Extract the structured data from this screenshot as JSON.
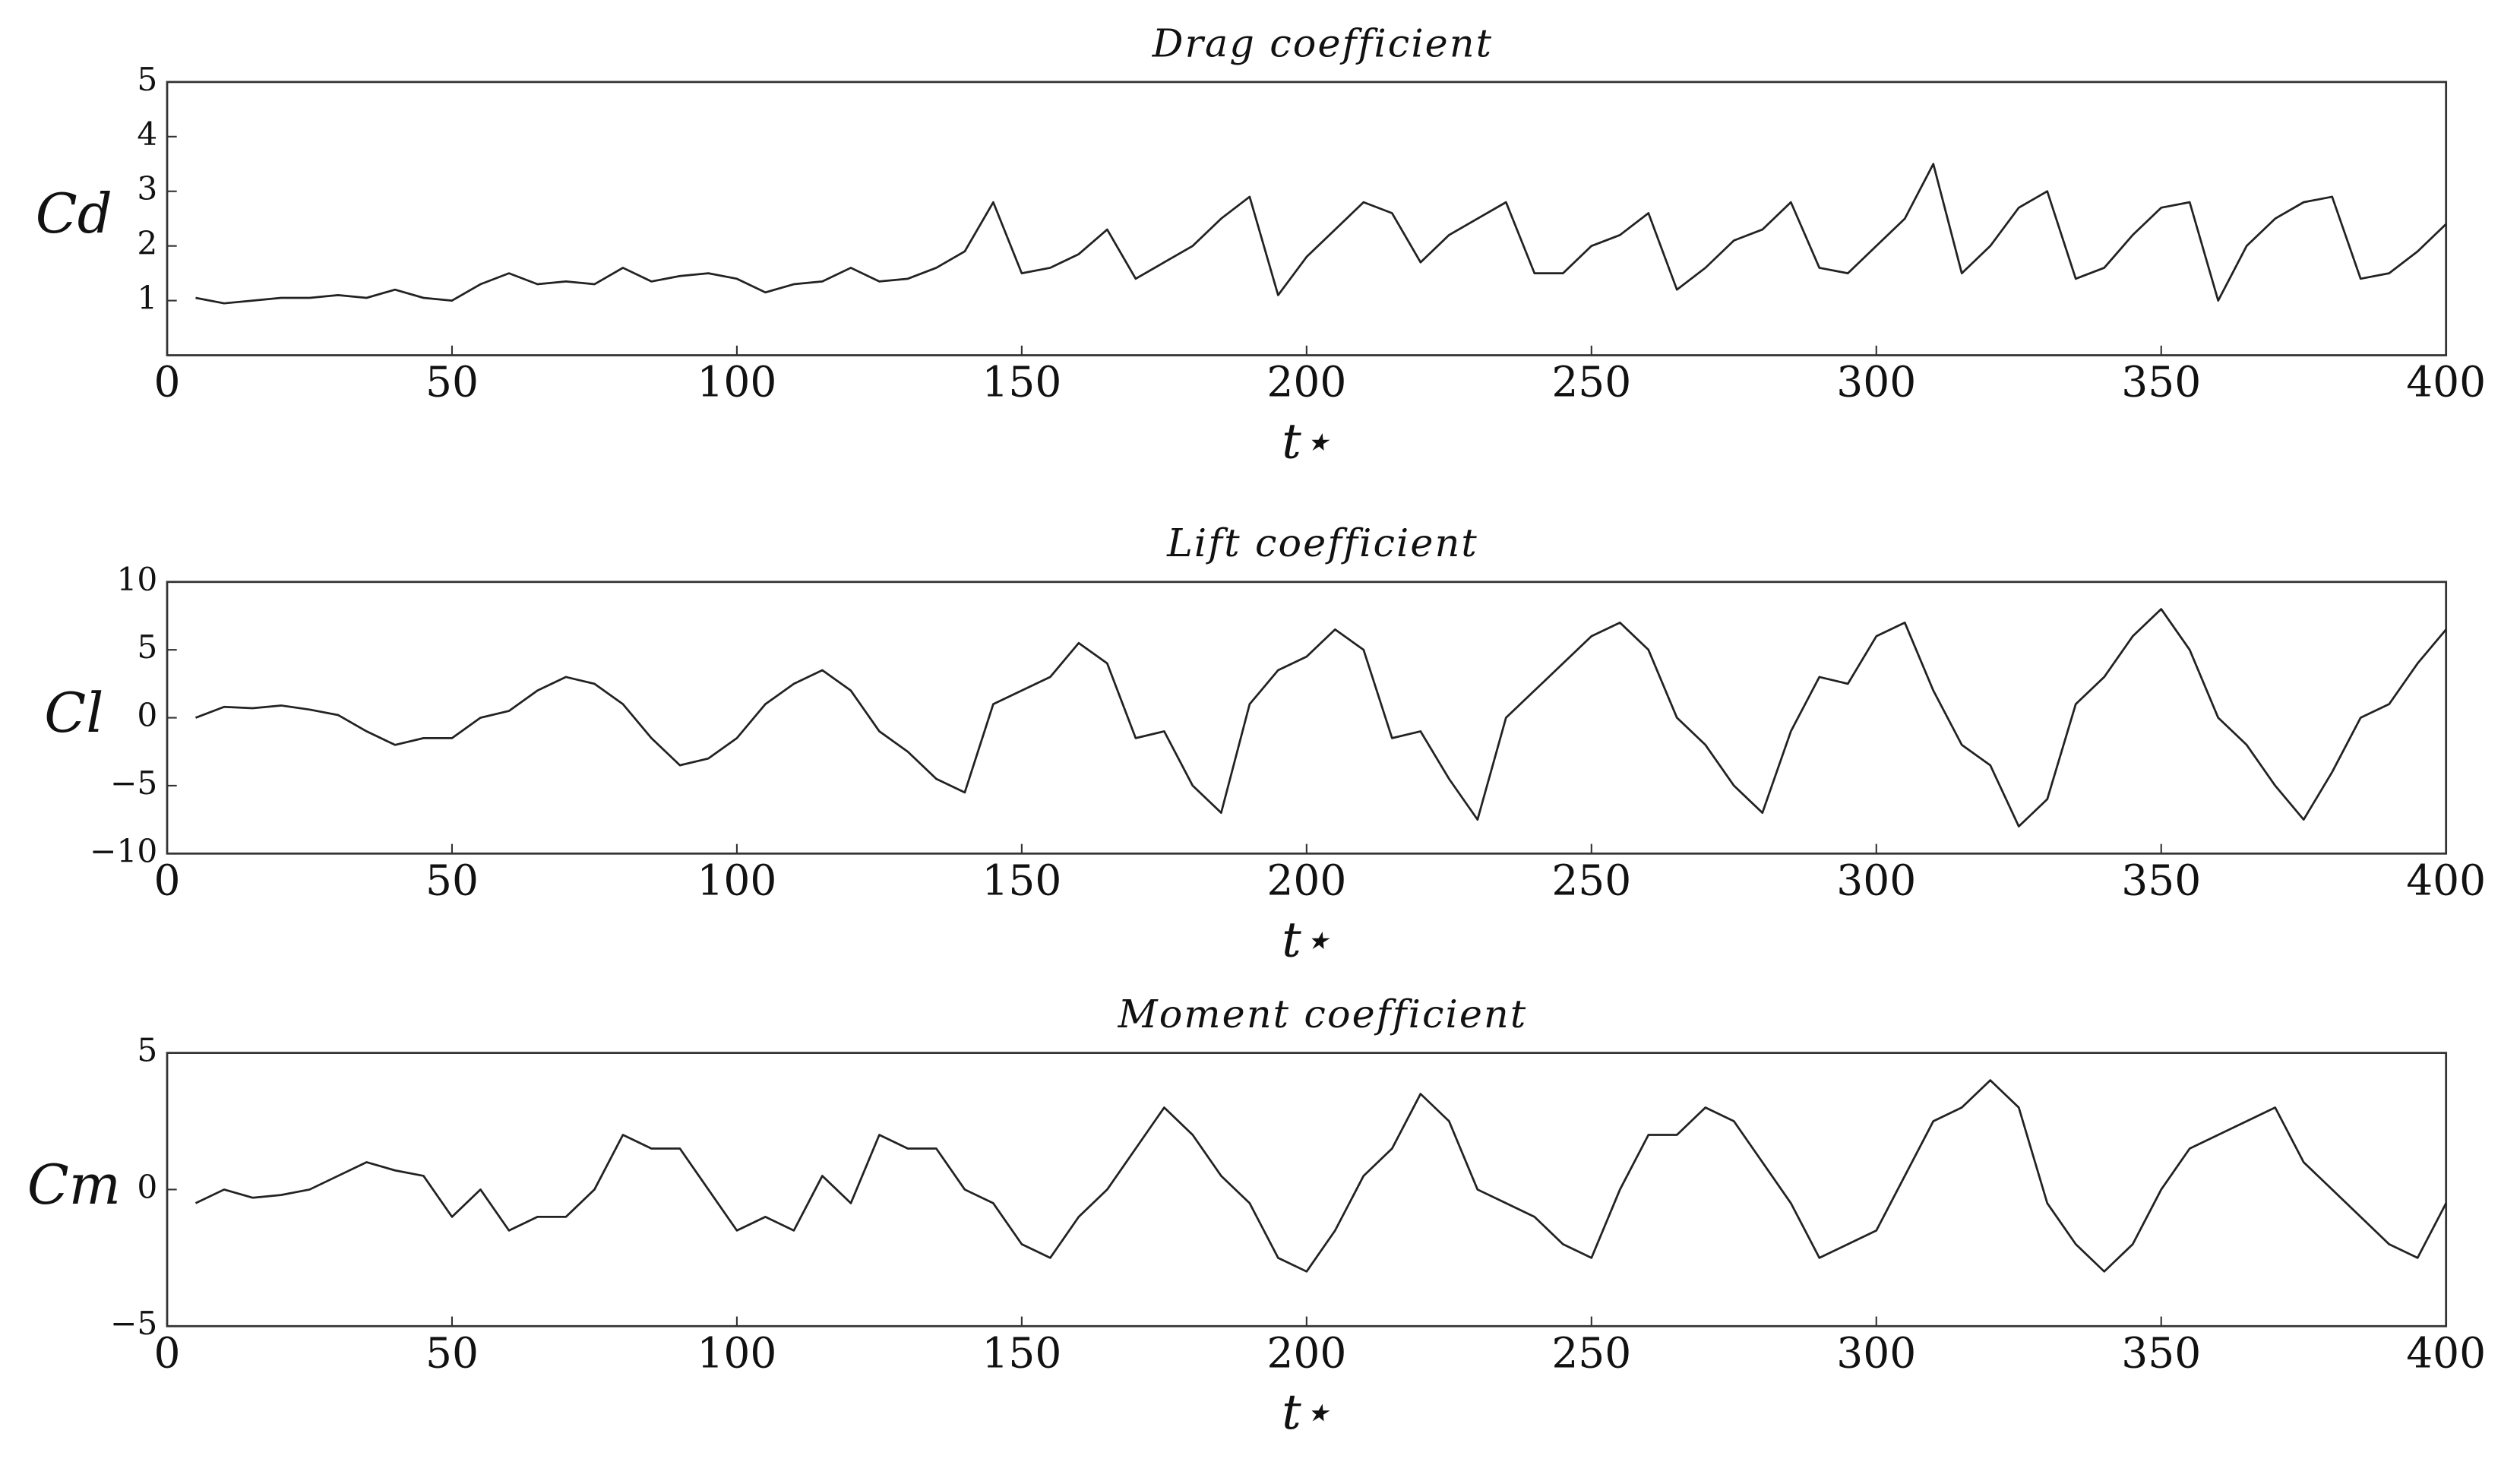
{
  "chart_data": [
    {
      "type": "line",
      "title": "Drag coefficient",
      "ylabel": "Cd",
      "xlabel": "t⋆",
      "color": "#222222",
      "xlim": [
        0,
        400
      ],
      "xticks": [
        0,
        50,
        100,
        150,
        200,
        250,
        300,
        350,
        400
      ],
      "ylim": [
        0,
        5
      ],
      "yticks": [
        1,
        2,
        3,
        4,
        5
      ],
      "x": [
        5,
        10,
        15,
        20,
        25,
        30,
        35,
        40,
        45,
        50,
        55,
        60,
        65,
        70,
        75,
        80,
        85,
        90,
        95,
        100,
        105,
        110,
        115,
        120,
        125,
        130,
        135,
        140,
        145,
        150,
        155,
        160,
        165,
        170,
        175,
        180,
        185,
        190,
        195,
        200,
        205,
        210,
        215,
        220,
        225,
        230,
        235,
        240,
        245,
        250,
        255,
        260,
        265,
        270,
        275,
        280,
        285,
        290,
        295,
        300,
        305,
        310,
        315,
        320,
        325,
        330,
        335,
        340,
        345,
        350,
        355,
        360,
        365,
        370,
        375,
        380,
        385,
        390,
        395,
        400
      ],
      "values": [
        1.05,
        0.95,
        1.0,
        1.05,
        1.05,
        1.1,
        1.05,
        1.2,
        1.05,
        1.0,
        1.3,
        1.5,
        1.3,
        1.35,
        1.3,
        1.6,
        1.35,
        1.45,
        1.5,
        1.4,
        1.15,
        1.3,
        1.35,
        1.6,
        1.35,
        1.4,
        1.6,
        1.9,
        2.8,
        1.5,
        1.6,
        1.85,
        2.3,
        1.4,
        1.7,
        2.0,
        2.5,
        2.9,
        1.1,
        1.8,
        2.3,
        2.8,
        2.6,
        1.7,
        2.2,
        2.5,
        2.8,
        1.5,
        1.5,
        2.0,
        2.2,
        2.6,
        1.2,
        1.6,
        2.1,
        2.3,
        2.8,
        1.6,
        1.5,
        2.0,
        2.5,
        3.5,
        1.5,
        2.0,
        2.7,
        3.0,
        1.4,
        1.6,
        2.2,
        2.7,
        2.8,
        1.0,
        2.0,
        2.5,
        2.8,
        2.9,
        1.4,
        1.5,
        1.9,
        2.4
      ]
    },
    {
      "type": "line",
      "title": "Lift coefficient",
      "ylabel": "Cl",
      "xlabel": "t⋆",
      "color": "#222222",
      "xlim": [
        0,
        400
      ],
      "xticks": [
        0,
        50,
        100,
        150,
        200,
        250,
        300,
        350,
        400
      ],
      "ylim": [
        -10,
        10
      ],
      "yticks": [
        {
          "value": -10,
          "label": "−10"
        },
        {
          "value": -5,
          "label": "−5"
        },
        0,
        5,
        10
      ],
      "x": [
        5,
        10,
        15,
        20,
        25,
        30,
        35,
        40,
        45,
        50,
        55,
        60,
        65,
        70,
        75,
        80,
        85,
        90,
        95,
        100,
        105,
        110,
        115,
        120,
        125,
        130,
        135,
        140,
        145,
        150,
        155,
        160,
        165,
        170,
        175,
        180,
        185,
        190,
        195,
        200,
        205,
        210,
        215,
        220,
        225,
        230,
        235,
        240,
        245,
        250,
        255,
        260,
        265,
        270,
        275,
        280,
        285,
        290,
        295,
        300,
        305,
        310,
        315,
        320,
        325,
        330,
        335,
        340,
        345,
        350,
        355,
        360,
        365,
        370,
        375,
        380,
        385,
        390,
        395,
        400
      ],
      "values": [
        0,
        0.8,
        0.7,
        0.9,
        0.6,
        0.2,
        -1,
        -2,
        -1.5,
        -1.5,
        0,
        0.5,
        2,
        3,
        2.5,
        1,
        -1.5,
        -3.5,
        -3,
        -1.5,
        1,
        2.5,
        3.5,
        2,
        -1,
        -2.5,
        -4.5,
        -5.5,
        1,
        2,
        3,
        5.5,
        4,
        -1.5,
        -1,
        -5,
        -7,
        1,
        3.5,
        4.5,
        6.5,
        5,
        -1.5,
        -1,
        -4.5,
        -7.5,
        0,
        2,
        4,
        6,
        7,
        5,
        0,
        -2,
        -5,
        -7,
        -1,
        3,
        2.5,
        6,
        7,
        2,
        -2,
        -3.5,
        -8,
        -6,
        1,
        3,
        6,
        8,
        5,
        0,
        -2,
        -5,
        -7.5,
        -4,
        0,
        1,
        4,
        6.5
      ]
    },
    {
      "type": "line",
      "title": "Moment coefficient",
      "ylabel": "Cm",
      "xlabel": "t⋆",
      "color": "#222222",
      "xlim": [
        0,
        400
      ],
      "xticks": [
        0,
        50,
        100,
        150,
        200,
        250,
        300,
        350,
        400
      ],
      "ylim": [
        -5,
        5
      ],
      "yticks": [
        {
          "value": -5,
          "label": "−5"
        },
        0,
        5
      ],
      "x": [
        5,
        10,
        15,
        20,
        25,
        30,
        35,
        40,
        45,
        50,
        55,
        60,
        65,
        70,
        75,
        80,
        85,
        90,
        95,
        100,
        105,
        110,
        115,
        120,
        125,
        130,
        135,
        140,
        145,
        150,
        155,
        160,
        165,
        170,
        175,
        180,
        185,
        190,
        195,
        200,
        205,
        210,
        215,
        220,
        225,
        230,
        235,
        240,
        245,
        250,
        255,
        260,
        265,
        270,
        275,
        280,
        285,
        290,
        295,
        300,
        305,
        310,
        315,
        320,
        325,
        330,
        335,
        340,
        345,
        350,
        355,
        360,
        365,
        370,
        375,
        380,
        385,
        390,
        395,
        400
      ],
      "values": [
        -0.5,
        0,
        -0.3,
        -0.2,
        0,
        0.5,
        1,
        0.7,
        0.5,
        -1,
        0,
        -1.5,
        -1,
        -1,
        0,
        2,
        1.5,
        1.5,
        0,
        -1.5,
        -1,
        -1.5,
        0.5,
        -0.5,
        2,
        1.5,
        1.5,
        0,
        -0.5,
        -2,
        -2.5,
        -1,
        0,
        1.5,
        3,
        2,
        0.5,
        -0.5,
        -2.5,
        -3,
        -1.5,
        0.5,
        1.5,
        3.5,
        2.5,
        0,
        -0.5,
        -1,
        -2,
        -2.5,
        0,
        2,
        2,
        3,
        2.5,
        1,
        -0.5,
        -2.5,
        -2,
        -1.5,
        0.5,
        2.5,
        3,
        4,
        3,
        -0.5,
        -2,
        -3,
        -2,
        0,
        1.5,
        2,
        2.5,
        3,
        1,
        0,
        -1,
        -2,
        -2.5,
        -0.5
      ]
    }
  ]
}
